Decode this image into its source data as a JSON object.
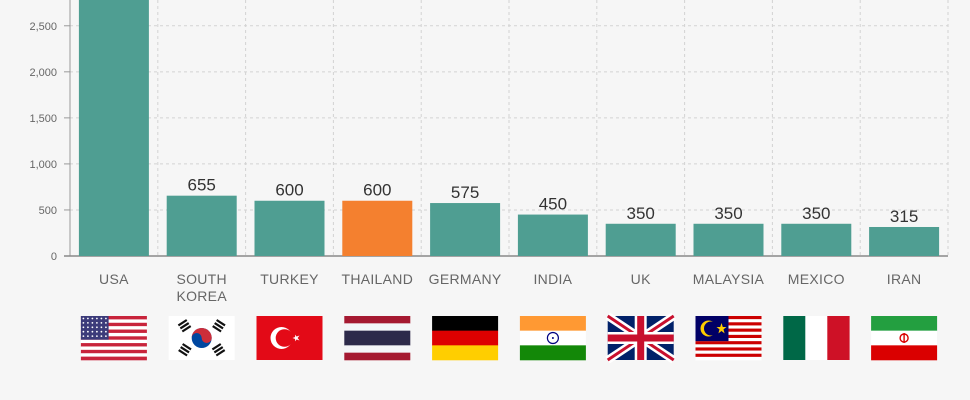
{
  "chart_data": {
    "type": "bar",
    "categories": [
      "USA",
      "SOUTH KOREA",
      "TURKEY",
      "THAILAND",
      "GERMANY",
      "INDIA",
      "UK",
      "MALAYSIA",
      "MEXICO",
      "IRAN"
    ],
    "values": [
      2800,
      655,
      600,
      600,
      575,
      450,
      350,
      350,
      350,
      315
    ],
    "value_labels": [
      "",
      "655",
      "600",
      "600",
      "575",
      "450",
      "350",
      "350",
      "350",
      "315"
    ],
    "yticks": [
      0,
      500,
      1000,
      1500,
      2000,
      2500
    ],
    "ytick_labels": [
      "0",
      "500",
      "1,000",
      "1,500",
      "2,000",
      "2,500"
    ],
    "ylim": [
      0,
      2780
    ],
    "grid": true,
    "colors": {
      "bar": "#4f9e92",
      "highlight": "#f4802f",
      "grid": "#d3d3d3"
    },
    "highlight_category": "THAILAND",
    "flags": [
      "usa-flag-icon",
      "south-korea-flag-icon",
      "turkey-flag-icon",
      "thailand-flag-icon",
      "germany-flag-icon",
      "india-flag-icon",
      "uk-flag-icon",
      "malaysia-flag-icon",
      "mexico-flag-icon",
      "iran-flag-icon"
    ]
  }
}
